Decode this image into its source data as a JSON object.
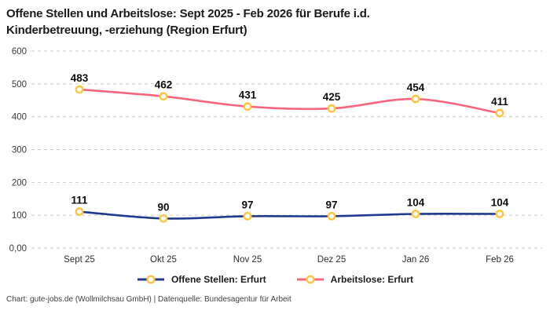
{
  "title": {
    "line1": "Offene Stellen und Arbeitslose: Sept 2025 - Feb 2026 für Berufe i.d.",
    "line2": "Kinderbetreuung, -erziehung (Region Erfurt)"
  },
  "colors": {
    "offene_stellen": "#213A8F",
    "arbeitslose": "#F8657F",
    "marker": "#FFC53D",
    "gridline": "#CBCBCB",
    "data_label": "#0d0d0d",
    "tick_label": "#3a3a3a"
  },
  "chart_data": {
    "type": "line",
    "title": "Offene Stellen und Arbeitslose: Sept 2025 - Feb 2026 für Berufe i.d. Kinderbetreuung, -erziehung (Region Erfurt)",
    "categories": [
      "Sept 25",
      "Okt 25",
      "Nov 25",
      "Dez 25",
      "Jan 26",
      "Feb 26"
    ],
    "series": [
      {
        "name": "Offene Stellen: Erfurt",
        "color_key": "offene_stellen",
        "values": [
          111,
          90,
          97,
          97,
          104,
          104
        ]
      },
      {
        "name": "Arbeitslose: Erfurt",
        "color_key": "arbeitslose",
        "values": [
          483,
          462,
          431,
          425,
          454,
          411
        ]
      }
    ],
    "ylim": [
      0,
      600
    ],
    "y_ticks": [
      "600",
      "500",
      "400",
      "300",
      "200",
      "100",
      "0,00"
    ],
    "grid": "horizontal-dashed",
    "legend_position": "bottom",
    "marker": "open-circle-yellow",
    "curve": "smooth",
    "data_labels": true
  },
  "footer": "Chart: gute-jobs.de (Wollmilchsau GmbH) | Datenquelle: Bundesagentur für Arbeit"
}
